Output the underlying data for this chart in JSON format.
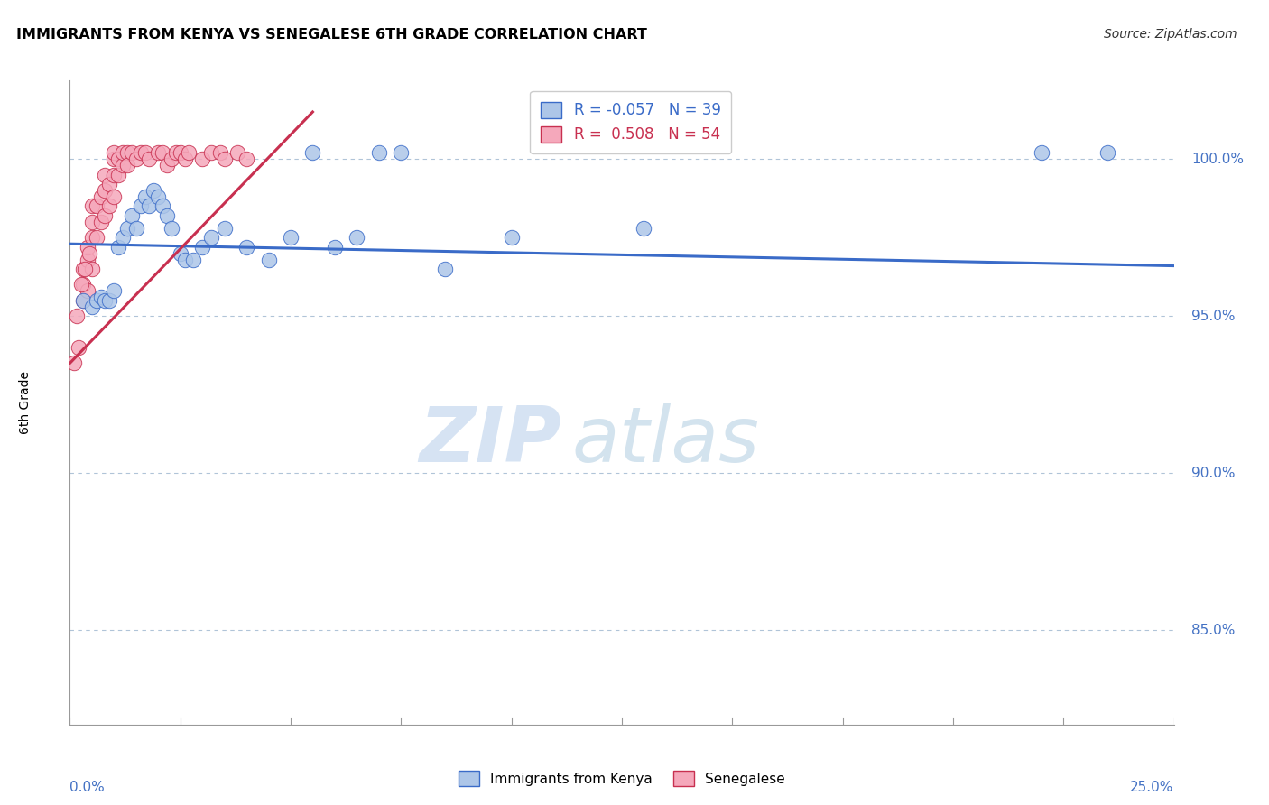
{
  "title": "IMMIGRANTS FROM KENYA VS SENEGALESE 6TH GRADE CORRELATION CHART",
  "source": "Source: ZipAtlas.com",
  "ylabel": "6th Grade",
  "xmin": 0.0,
  "xmax": 25.0,
  "ymin": 82.0,
  "ymax": 102.5,
  "ytick_labels": [
    "85.0%",
    "90.0%",
    "95.0%",
    "100.0%"
  ],
  "ytick_values": [
    85.0,
    90.0,
    95.0,
    100.0
  ],
  "legend_blue_r": "-0.057",
  "legend_blue_n": "39",
  "legend_pink_r": "0.508",
  "legend_pink_n": "54",
  "blue_color": "#adc6e8",
  "pink_color": "#f5a8bb",
  "blue_line_color": "#3a6bc8",
  "pink_line_color": "#c83050",
  "watermark_zip_color": "#c5d8ef",
  "watermark_atlas_color": "#b0cce0",
  "blue_scatter_x": [
    0.3,
    0.5,
    0.6,
    0.7,
    0.8,
    0.9,
    1.0,
    1.1,
    1.2,
    1.3,
    1.4,
    1.5,
    1.6,
    1.7,
    1.8,
    1.9,
    2.0,
    2.1,
    2.2,
    2.3,
    2.5,
    2.6,
    2.8,
    3.0,
    3.2,
    3.5,
    4.0,
    4.5,
    5.0,
    5.5,
    6.0,
    6.5,
    7.0,
    7.5,
    8.5,
    10.0,
    13.0,
    22.0,
    23.5
  ],
  "blue_scatter_y": [
    95.5,
    95.3,
    95.5,
    95.6,
    95.5,
    95.5,
    95.8,
    97.2,
    97.5,
    97.8,
    98.2,
    97.8,
    98.5,
    98.8,
    98.5,
    99.0,
    98.8,
    98.5,
    98.2,
    97.8,
    97.0,
    96.8,
    96.8,
    97.2,
    97.5,
    97.8,
    97.2,
    96.8,
    97.5,
    100.2,
    97.2,
    97.5,
    100.2,
    100.2,
    96.5,
    97.5,
    97.8,
    100.2,
    100.2
  ],
  "pink_scatter_x": [
    0.1,
    0.2,
    0.3,
    0.3,
    0.3,
    0.4,
    0.4,
    0.4,
    0.5,
    0.5,
    0.5,
    0.5,
    0.6,
    0.6,
    0.7,
    0.7,
    0.8,
    0.8,
    0.8,
    0.9,
    0.9,
    1.0,
    1.0,
    1.0,
    1.0,
    1.1,
    1.1,
    1.2,
    1.2,
    1.3,
    1.3,
    1.4,
    1.5,
    1.6,
    1.7,
    1.8,
    2.0,
    2.1,
    2.2,
    2.3,
    2.4,
    2.5,
    2.6,
    2.7,
    3.0,
    3.2,
    3.4,
    3.5,
    3.8,
    4.0,
    0.15,
    0.25,
    0.35,
    0.45
  ],
  "pink_scatter_y": [
    93.5,
    94.0,
    95.5,
    96.0,
    96.5,
    95.8,
    96.8,
    97.2,
    96.5,
    97.5,
    98.0,
    98.5,
    97.5,
    98.5,
    98.0,
    98.8,
    98.2,
    99.0,
    99.5,
    98.5,
    99.2,
    98.8,
    99.5,
    100.0,
    100.2,
    99.5,
    100.0,
    99.8,
    100.2,
    100.2,
    99.8,
    100.2,
    100.0,
    100.2,
    100.2,
    100.0,
    100.2,
    100.2,
    99.8,
    100.0,
    100.2,
    100.2,
    100.0,
    100.2,
    100.0,
    100.2,
    100.2,
    100.0,
    100.2,
    100.0,
    95.0,
    96.0,
    96.5,
    97.0
  ],
  "blue_trend_x0": 0.0,
  "blue_trend_y0": 97.3,
  "blue_trend_x1": 25.0,
  "blue_trend_y1": 96.6,
  "pink_trend_x0": 0.0,
  "pink_trend_y0": 93.5,
  "pink_trend_x1": 5.5,
  "pink_trend_y1": 101.5
}
